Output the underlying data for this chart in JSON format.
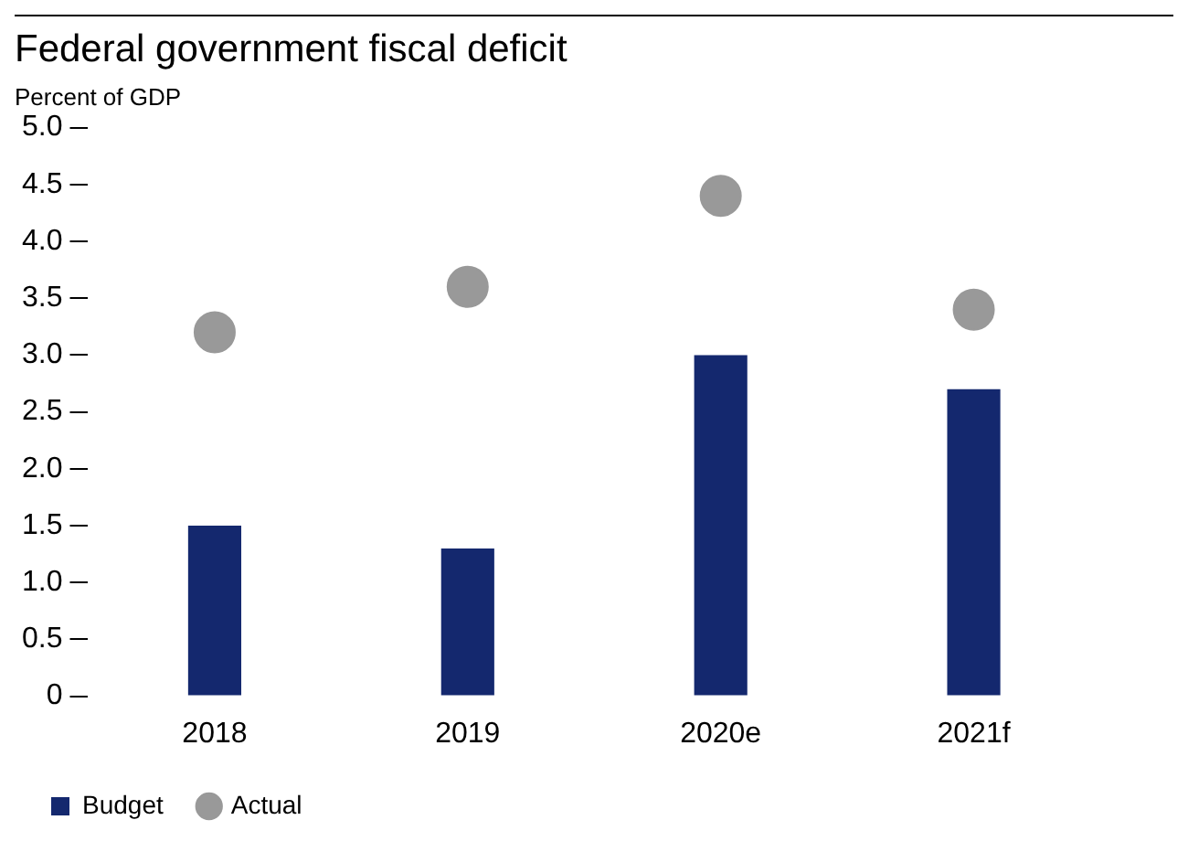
{
  "chart_data": {
    "type": "bar",
    "title": "Federal government fiscal deficit",
    "ylabel": "Percent of GDP",
    "categories": [
      "2018",
      "2019",
      "2020e",
      "2021f"
    ],
    "series": [
      {
        "name": "Budget",
        "color": "#14286e",
        "values": [
          1.5,
          1.3,
          3.0,
          2.7
        ]
      },
      {
        "name": "Actual",
        "type": "scatter",
        "marker": "circle",
        "color": "#999999",
        "values": [
          3.2,
          3.6,
          4.4,
          3.4
        ]
      }
    ],
    "ylim": [
      0,
      5
    ],
    "yticks": [
      0,
      0.5,
      {
        "value": 1,
        "label": "1.0"
      },
      1.5,
      {
        "value": 2,
        "label": "2.0"
      },
      2.5,
      {
        "value": 3,
        "label": "3.0"
      },
      3.5,
      {
        "value": 4,
        "label": "4.0"
      },
      4.5,
      {
        "value": 5,
        "label": "5.0"
      }
    ],
    "grid": false,
    "legend": "bottom left"
  }
}
